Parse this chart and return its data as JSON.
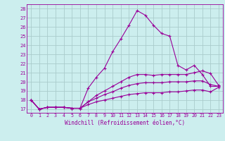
{
  "xlabel": "Windchill (Refroidissement éolien,°C)",
  "bg_color": "#cceeee",
  "line_color": "#990099",
  "grid_color": "#aacccc",
  "x_ticks": [
    0,
    1,
    2,
    3,
    4,
    5,
    6,
    7,
    8,
    9,
    10,
    11,
    12,
    13,
    14,
    15,
    16,
    17,
    18,
    19,
    20,
    21,
    22,
    23
  ],
  "y_ticks": [
    17,
    18,
    19,
    20,
    21,
    22,
    23,
    24,
    25,
    26,
    27,
    28
  ],
  "ylim": [
    16.6,
    28.5
  ],
  "xlim": [
    -0.5,
    23.5
  ],
  "series": [
    [
      18.0,
      17.0,
      17.2,
      17.2,
      17.2,
      17.1,
      17.1,
      19.3,
      20.5,
      21.5,
      23.3,
      24.7,
      26.2,
      27.8,
      27.3,
      26.2,
      25.3,
      25.0,
      21.8,
      21.3,
      21.8,
      20.8,
      19.5,
      19.5
    ],
    [
      18.0,
      17.0,
      17.2,
      17.2,
      17.2,
      17.1,
      17.1,
      17.8,
      18.5,
      19.0,
      19.5,
      20.0,
      20.5,
      20.8,
      20.8,
      20.7,
      20.8,
      20.8,
      20.8,
      20.8,
      21.0,
      21.2,
      20.9,
      19.6
    ],
    [
      18.0,
      17.0,
      17.2,
      17.2,
      17.2,
      17.1,
      17.1,
      17.8,
      18.2,
      18.6,
      18.9,
      19.3,
      19.6,
      19.8,
      19.9,
      19.9,
      19.9,
      20.0,
      20.0,
      20.0,
      20.1,
      20.1,
      19.7,
      19.5
    ],
    [
      18.0,
      17.0,
      17.2,
      17.2,
      17.2,
      17.1,
      17.1,
      17.5,
      17.8,
      18.0,
      18.2,
      18.4,
      18.6,
      18.7,
      18.8,
      18.8,
      18.8,
      18.9,
      18.9,
      19.0,
      19.1,
      19.1,
      18.9,
      19.4
    ]
  ]
}
